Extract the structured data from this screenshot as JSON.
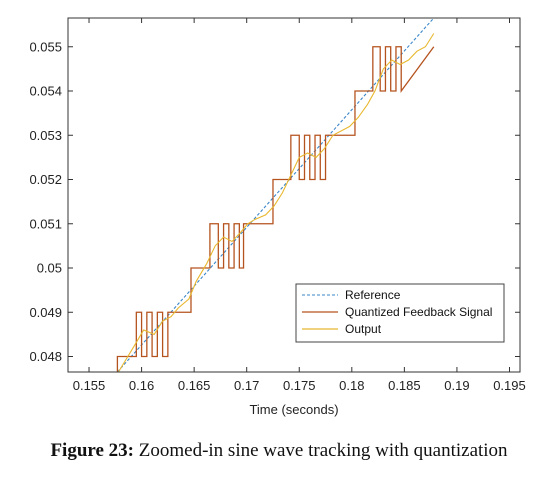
{
  "chart_data": {
    "type": "line",
    "title": "",
    "xlabel": "Time (seconds)",
    "ylabel": "",
    "xlim": [
      0.153,
      0.196
    ],
    "ylim": [
      0.04765,
      0.05565
    ],
    "xticks": [
      0.155,
      0.16,
      0.165,
      0.17,
      0.175,
      0.18,
      0.185,
      0.19,
      0.195
    ],
    "xtick_labels": [
      "0.155",
      "0.16",
      "0.165",
      "0.17",
      "0.175",
      "0.18",
      "0.185",
      "0.19",
      "0.195"
    ],
    "yticks": [
      0.048,
      0.049,
      0.05,
      0.051,
      0.052,
      0.053,
      0.054,
      0.055
    ],
    "ytick_labels": [
      "0.048",
      "0.049",
      "0.05",
      "0.051",
      "0.052",
      "0.053",
      "0.054",
      "0.055"
    ],
    "grid": false,
    "legend_position": "bottom-right",
    "series": [
      {
        "name": "Reference",
        "color": "#3a86c8",
        "style": "dashed",
        "x": [
          0.1577,
          0.1878
        ],
        "y": [
          0.04765,
          0.05565
        ]
      },
      {
        "name": "Quantized Feedback Signal",
        "color": "#b5531f",
        "style": "step",
        "x": [
          0.1577,
          0.1577,
          0.1595,
          0.1595,
          0.16,
          0.16,
          0.1605,
          0.1605,
          0.161,
          0.161,
          0.1615,
          0.1615,
          0.162,
          0.162,
          0.1625,
          0.1625,
          0.1647,
          0.1647,
          0.1665,
          0.1665,
          0.1673,
          0.1673,
          0.1678,
          0.1678,
          0.1683,
          0.1683,
          0.1688,
          0.1688,
          0.1693,
          0.1693,
          0.1697,
          0.1697,
          0.1725,
          0.1725,
          0.1742,
          0.1742,
          0.175,
          0.175,
          0.1755,
          0.1755,
          0.176,
          0.176,
          0.1765,
          0.1765,
          0.177,
          0.177,
          0.1775,
          0.1775,
          0.1803,
          0.1803,
          0.182,
          0.182,
          0.1827,
          0.1827,
          0.1832,
          0.1832,
          0.1837,
          0.1837,
          0.1842,
          0.1842,
          0.1847,
          0.1847,
          0.1878
        ],
        "y": [
          0.04765,
          0.048,
          0.048,
          0.049,
          0.049,
          0.048,
          0.048,
          0.049,
          0.049,
          0.048,
          0.048,
          0.049,
          0.049,
          0.048,
          0.048,
          0.049,
          0.049,
          0.05,
          0.05,
          0.051,
          0.051,
          0.05,
          0.05,
          0.051,
          0.051,
          0.05,
          0.05,
          0.051,
          0.051,
          0.05,
          0.05,
          0.051,
          0.051,
          0.052,
          0.052,
          0.053,
          0.053,
          0.052,
          0.052,
          0.053,
          0.053,
          0.052,
          0.052,
          0.053,
          0.053,
          0.052,
          0.052,
          0.053,
          0.053,
          0.054,
          0.054,
          0.055,
          0.055,
          0.054,
          0.054,
          0.055,
          0.055,
          0.054,
          0.054,
          0.055,
          0.055,
          0.054,
          0.055
        ]
      },
      {
        "name": "Output",
        "color": "#e8b830",
        "style": "solid",
        "x": [
          0.1578,
          0.1592,
          0.1602,
          0.1612,
          0.162,
          0.1628,
          0.1635,
          0.1645,
          0.1652,
          0.1662,
          0.167,
          0.1678,
          0.1686,
          0.1694,
          0.1701,
          0.1708,
          0.1718,
          0.1726,
          0.1734,
          0.1742,
          0.175,
          0.1758,
          0.1766,
          0.1774,
          0.1782,
          0.179,
          0.1798,
          0.1806,
          0.1815,
          0.1822,
          0.183,
          0.1838,
          0.1846,
          0.1854,
          0.1862,
          0.187,
          0.1878
        ],
        "y": [
          0.04765,
          0.0482,
          0.0486,
          0.0485,
          0.0488,
          0.0489,
          0.0491,
          0.0493,
          0.0497,
          0.0501,
          0.0505,
          0.0507,
          0.0506,
          0.0508,
          0.051,
          0.0511,
          0.0512,
          0.0514,
          0.0517,
          0.0521,
          0.0525,
          0.0526,
          0.0525,
          0.0527,
          0.053,
          0.0531,
          0.0532,
          0.0534,
          0.0537,
          0.054,
          0.0545,
          0.0547,
          0.0546,
          0.0547,
          0.0549,
          0.055,
          0.0553
        ]
      }
    ]
  },
  "caption": {
    "label": "Figure 23:",
    "text": " Zoomed-in sine wave tracking with quantization"
  }
}
